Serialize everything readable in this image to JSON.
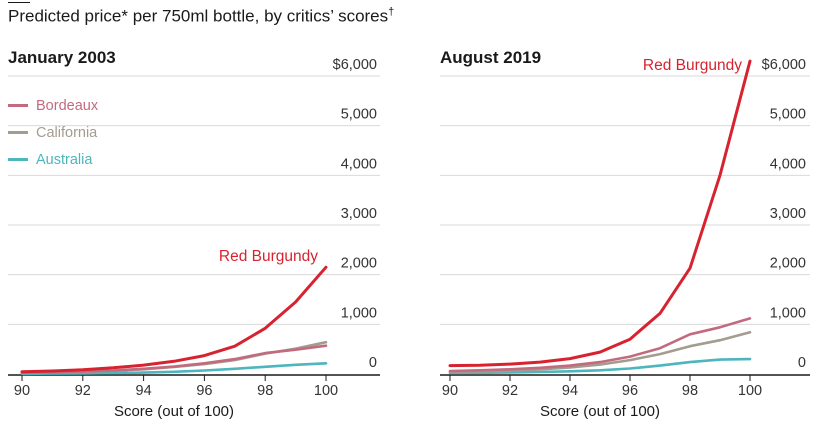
{
  "title": "Predicted price* per 750ml bottle, by critics’ scores",
  "title_mark": "†",
  "colors": {
    "red_burgundy": "#d7232f",
    "bordeaux": "#c26b7f",
    "california": "#a39c90",
    "australia": "#4db5bd",
    "grid": "#d9d9d9",
    "axis": "#1a1a1a"
  },
  "legend": [
    {
      "name": "Bordeaux",
      "color": "#c26b7f"
    },
    {
      "name": "California",
      "color": "#a39c90"
    },
    {
      "name": "Australia",
      "color": "#4db5bd"
    }
  ],
  "chart_data": [
    {
      "type": "line",
      "title": "January 2003",
      "xlabel": "Score (out of 100)",
      "ylabel": "",
      "x": [
        90,
        91,
        92,
        93,
        94,
        95,
        96,
        97,
        98,
        99,
        100
      ],
      "xticks": [
        "90",
        "92",
        "94",
        "96",
        "98",
        "100"
      ],
      "xlim": [
        90,
        100
      ],
      "ylim": [
        0,
        6000
      ],
      "yticks": [
        "0",
        "1,000",
        "2,000",
        "3,000",
        "4,000",
        "5,000",
        "$6,000"
      ],
      "grid": true,
      "legend_position": "top-left",
      "series": [
        {
          "name": "Red Burgundy",
          "color": "#d7232f",
          "labeled": true,
          "values": [
            45,
            60,
            85,
            125,
            180,
            255,
            370,
            560,
            920,
            1450,
            2150
          ]
        },
        {
          "name": "Bordeaux",
          "color": "#c26b7f",
          "values": [
            25,
            35,
            50,
            70,
            105,
            150,
            215,
            300,
            420,
            490,
            570
          ]
        },
        {
          "name": "California",
          "color": "#a39c90",
          "values": [
            20,
            30,
            45,
            65,
            95,
            140,
            200,
            280,
            410,
            510,
            640
          ]
        },
        {
          "name": "Australia",
          "color": "#4db5bd",
          "values": [
            5,
            8,
            12,
            18,
            28,
            45,
            70,
            105,
            145,
            185,
            215
          ]
        }
      ]
    },
    {
      "type": "line",
      "title": "August 2019",
      "xlabel": "Score (out of 100)",
      "ylabel": "",
      "x": [
        90,
        91,
        92,
        93,
        94,
        95,
        96,
        97,
        98,
        99,
        100
      ],
      "xticks": [
        "90",
        "92",
        "94",
        "96",
        "98",
        "100"
      ],
      "xlim": [
        90,
        100
      ],
      "ylim": [
        0,
        6000
      ],
      "yticks": [
        "0",
        "1,000",
        "2,000",
        "3,000",
        "4,000",
        "5,000",
        "$6,000"
      ],
      "grid": true,
      "series": [
        {
          "name": "Red Burgundy",
          "color": "#d7232f",
          "labeled": true,
          "values": [
            170,
            175,
            200,
            240,
            310,
            440,
            700,
            1220,
            2130,
            4000,
            6300
          ]
        },
        {
          "name": "Bordeaux",
          "color": "#c26b7f",
          "values": [
            60,
            75,
            95,
            125,
            170,
            240,
            350,
            520,
            800,
            940,
            1120
          ]
        },
        {
          "name": "California",
          "color": "#a39c90",
          "values": [
            40,
            50,
            65,
            90,
            130,
            190,
            280,
            400,
            560,
            680,
            840
          ]
        },
        {
          "name": "Australia",
          "color": "#4db5bd",
          "values": [
            20,
            25,
            30,
            40,
            55,
            75,
            110,
            170,
            240,
            290,
            300
          ]
        }
      ]
    }
  ]
}
